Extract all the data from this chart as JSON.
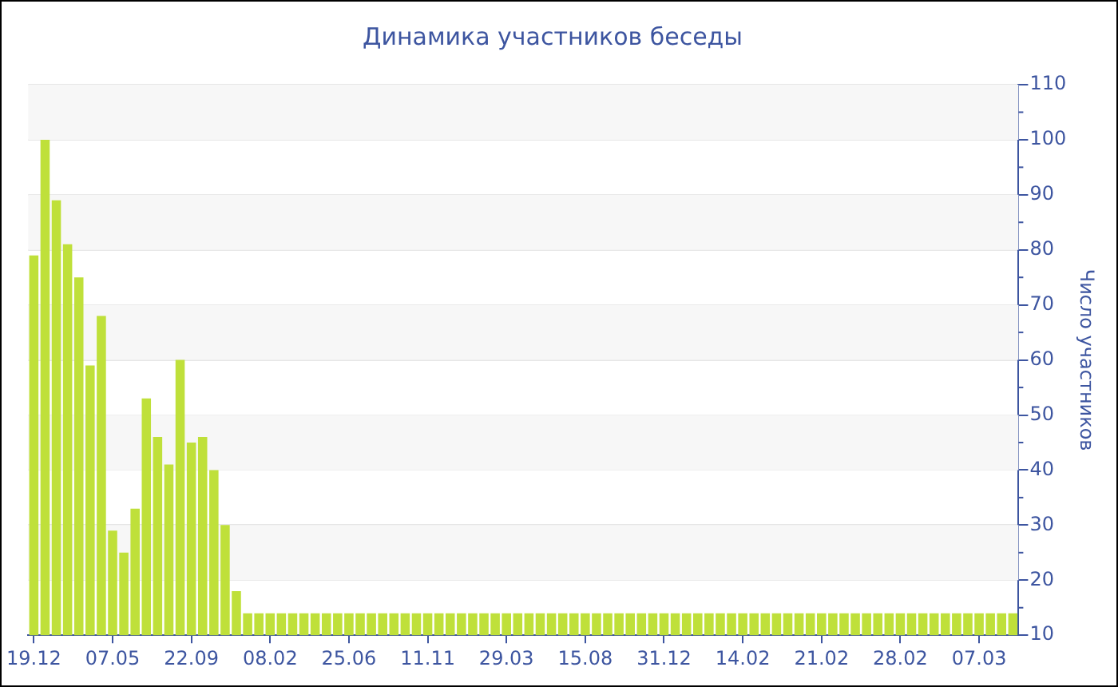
{
  "chart_data": {
    "type": "bar",
    "title": "Динамика участников беседы",
    "ylabel": "Число участников",
    "categories": [
      "19.12",
      null,
      null,
      null,
      null,
      null,
      null,
      "07.05",
      null,
      null,
      null,
      null,
      null,
      null,
      "22.09",
      null,
      null,
      null,
      null,
      null,
      null,
      "08.02",
      null,
      null,
      null,
      null,
      null,
      null,
      "25.06",
      null,
      null,
      null,
      null,
      null,
      null,
      "11.11",
      null,
      null,
      null,
      null,
      null,
      null,
      "29.03",
      null,
      null,
      null,
      null,
      null,
      null,
      "15.08",
      null,
      null,
      null,
      null,
      null,
      null,
      "31.12",
      null,
      null,
      null,
      null,
      null,
      null,
      "14.02",
      null,
      null,
      null,
      null,
      null,
      null,
      "21.02",
      null,
      null,
      null,
      null,
      null,
      null,
      "28.02",
      null,
      null,
      null,
      null,
      null,
      null,
      "07.03",
      null,
      null,
      null
    ],
    "values": [
      79,
      100,
      89,
      81,
      75,
      59,
      68,
      29,
      25,
      33,
      53,
      46,
      41,
      60,
      45,
      46,
      40,
      30,
      18,
      14,
      14,
      14,
      14,
      14,
      14,
      14,
      14,
      14,
      14,
      14,
      14,
      14,
      14,
      14,
      14,
      14,
      14,
      14,
      14,
      14,
      14,
      14,
      14,
      14,
      14,
      14,
      14,
      14,
      14,
      14,
      14,
      14,
      14,
      14,
      14,
      14,
      14,
      14,
      14,
      14,
      14,
      14,
      14,
      14,
      14,
      14,
      14,
      14,
      14,
      14,
      14,
      14,
      14,
      14,
      14,
      14,
      14,
      14,
      14,
      14,
      14,
      14,
      14,
      14,
      14,
      14,
      14,
      14
    ],
    "color": "#bfe03a",
    "ylim": [
      10,
      110
    ],
    "yticks": [
      10,
      20,
      30,
      40,
      50,
      60,
      70,
      80,
      90,
      100,
      110
    ],
    "grid": "y",
    "legend": false
  }
}
